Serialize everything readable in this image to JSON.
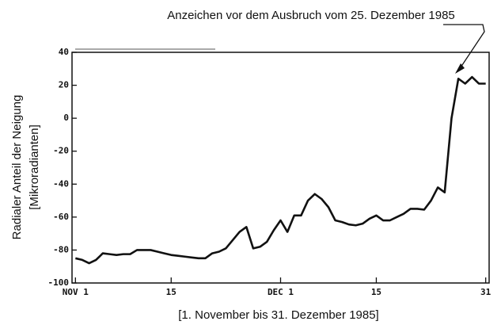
{
  "chart_data": {
    "type": "line",
    "annotation": "Anzeichen vor dem Ausbruch vom 25. Dezember 1985",
    "ylabel": [
      "Radialer Anteil der Neigung",
      "[Mikroradianten]"
    ],
    "xlabel": "[1. November bis 31. Dezember 1985]",
    "x": [
      1,
      2,
      3,
      4,
      5,
      6,
      7,
      8,
      9,
      10,
      11,
      12,
      13,
      14,
      15,
      16,
      17,
      18,
      19,
      20,
      21,
      22,
      23,
      24,
      25,
      26,
      27,
      28,
      29,
      30,
      31,
      32,
      33,
      34,
      35,
      36,
      37,
      38,
      39,
      40,
      41,
      42,
      43,
      44,
      45,
      46,
      47,
      48,
      49,
      50,
      51,
      52,
      53,
      54,
      55,
      56,
      57,
      58,
      59,
      60,
      61
    ],
    "series": [
      {
        "color": "#111111",
        "values": [
          -85,
          -86,
          -88,
          -86,
          -82,
          -82.5,
          -83,
          -82.5,
          -82.5,
          -80,
          -80,
          -80,
          -81,
          -82,
          -83,
          -83.5,
          -84,
          -84.5,
          -85,
          -85,
          -82,
          -81,
          -79,
          -74,
          -69,
          -66,
          -79,
          -78,
          -75,
          -68,
          -62,
          -69,
          -59,
          -59,
          -50,
          -46,
          -49,
          -54,
          -62,
          -63,
          -64.5,
          -65,
          -64,
          -61,
          -59,
          -62,
          -62,
          -60,
          -58,
          -55,
          -55,
          -55.5,
          -50,
          -42,
          -45,
          0,
          24,
          21,
          25,
          21,
          21
        ]
      }
    ],
    "xlim": [
      0.5,
      61.5
    ],
    "xticks": [
      {
        "value": 1,
        "label": "NOV 1"
      },
      15,
      {
        "value": 31,
        "label": "DEC 1"
      },
      {
        "value": 45,
        "label": "15"
      },
      {
        "value": 61,
        "label": "31"
      }
    ],
    "ylim": [
      -100,
      40
    ],
    "yticks": [
      -100,
      -80,
      -60,
      -40,
      -20,
      0,
      20,
      40
    ]
  }
}
